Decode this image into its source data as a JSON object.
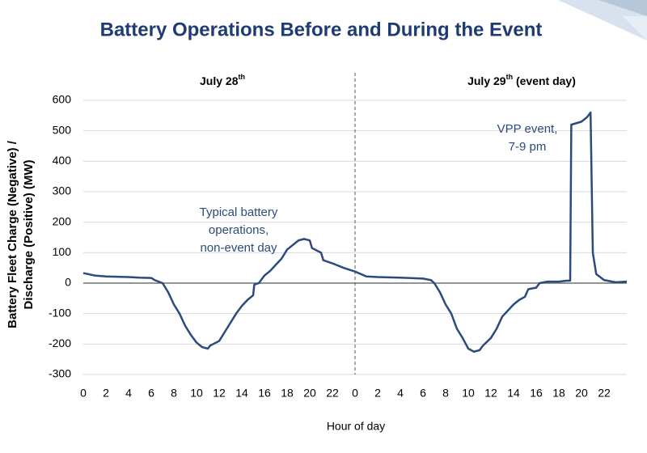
{
  "chart_data": {
    "type": "line",
    "title": "Battery Operations Before and During the Event",
    "x_label": "Hour of day",
    "y_label": [
      "Battery Fleet Charge (Negative) /",
      "Discharge (Positive) (MW)"
    ],
    "day_labels": [
      {
        "text": "July 28",
        "sup": "th"
      },
      {
        "text": "July 29",
        "sup": "th",
        "after": " (event day)"
      }
    ],
    "annotations": [
      {
        "lines": [
          "Typical battery",
          "operations,",
          "non-event day"
        ]
      },
      {
        "lines": [
          "VPP event,",
          "7-9 pm"
        ]
      }
    ],
    "x": [
      0,
      1,
      2,
      3,
      4,
      5,
      6,
      6.3,
      7,
      7.5,
      8,
      8.5,
      9,
      9.5,
      10,
      10.5,
      11,
      11.2,
      12,
      12.5,
      13,
      13.5,
      14,
      14.5,
      15,
      15.1,
      15.5,
      16,
      16.5,
      17,
      17.5,
      18,
      18.5,
      19,
      19.5,
      20,
      20.2,
      21,
      21.2,
      22,
      23,
      24,
      25,
      26,
      28,
      30,
      30.7,
      31,
      31.5,
      32,
      32.5,
      33,
      33.5,
      34,
      34.5,
      35,
      35.3,
      36,
      36.5,
      37,
      37.5,
      38,
      38.5,
      39,
      39.3,
      40,
      40.3,
      41,
      42,
      42.7,
      43,
      43.1,
      44,
      44.5,
      44.8,
      45,
      45.3,
      46,
      47,
      48
    ],
    "series": [
      {
        "name": "Battery fleet",
        "color": "#2c4a7c",
        "values": [
          33,
          25,
          22,
          21,
          20,
          18,
          17,
          10,
          0,
          -30,
          -70,
          -100,
          -140,
          -170,
          -195,
          -210,
          -215,
          -205,
          -190,
          -160,
          -130,
          -100,
          -75,
          -55,
          -40,
          -5,
          0,
          25,
          40,
          60,
          80,
          110,
          125,
          140,
          145,
          140,
          115,
          100,
          75,
          65,
          50,
          38,
          22,
          20,
          18,
          15,
          10,
          0,
          -30,
          -70,
          -100,
          -150,
          -180,
          -215,
          -225,
          -220,
          -205,
          -180,
          -150,
          -110,
          -90,
          -70,
          -55,
          -45,
          -20,
          -15,
          0,
          5,
          5,
          8,
          8,
          520,
          530,
          545,
          560,
          100,
          30,
          10,
          3,
          5
        ]
      }
    ],
    "xlim": [
      0,
      48
    ],
    "ylim": [
      -300,
      600
    ],
    "xticks": [
      0,
      2,
      4,
      6,
      8,
      10,
      12,
      14,
      16,
      18,
      20,
      22,
      {
        "value": 24,
        "label": "0"
      },
      {
        "value": 26,
        "label": "2"
      },
      {
        "value": 28,
        "label": "4"
      },
      {
        "value": 30,
        "label": "6"
      },
      {
        "value": 32,
        "label": "8"
      },
      {
        "value": 34,
        "label": "10"
      },
      {
        "value": 36,
        "label": "12"
      },
      {
        "value": 38,
        "label": "14"
      },
      {
        "value": 40,
        "label": "16"
      },
      {
        "value": 42,
        "label": "18"
      },
      {
        "value": 44,
        "label": "20"
      },
      {
        "value": 46,
        "label": "22"
      }
    ],
    "yticks": [
      -300,
      -200,
      -100,
      0,
      100,
      200,
      300,
      400,
      500,
      600
    ],
    "grid": true
  }
}
